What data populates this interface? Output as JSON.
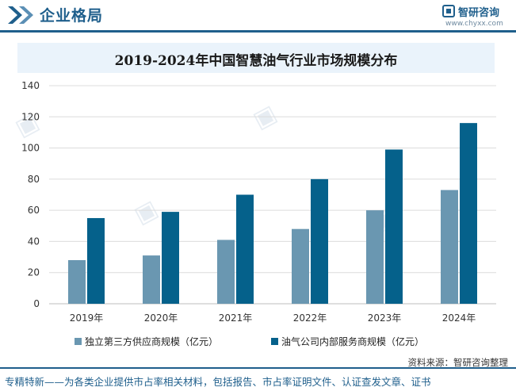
{
  "header": {
    "title": "企业格局",
    "brand_name": "智研咨询",
    "brand_url": "www.chyxx.com",
    "accent_color": "#1f5f8c"
  },
  "chart_data": {
    "type": "bar",
    "title": "2019-2024年中国智慧油气行业市场规模分布",
    "categories": [
      "2019年",
      "2020年",
      "2021年",
      "2022年",
      "2023年",
      "2024年"
    ],
    "series": [
      {
        "name": "独立第三方供应商规模（亿元）",
        "color": "#6a97b1",
        "values": [
          28,
          31,
          41,
          48,
          60,
          73
        ]
      },
      {
        "name": "油气公司内部服务商规模（亿元）",
        "color": "#05618b",
        "values": [
          55,
          59,
          70,
          80,
          99,
          116
        ]
      }
    ],
    "ylim": [
      0,
      140
    ],
    "yticks": [
      0,
      20,
      40,
      60,
      80,
      100,
      120,
      140
    ],
    "grid": true,
    "legend_position": "bottom"
  },
  "source": "资料来源：智研咨询整理",
  "footer": "专精特新——为各类企业提供市占率相关材料，包括报告、市占率证明文件、认证查发文章、证书"
}
